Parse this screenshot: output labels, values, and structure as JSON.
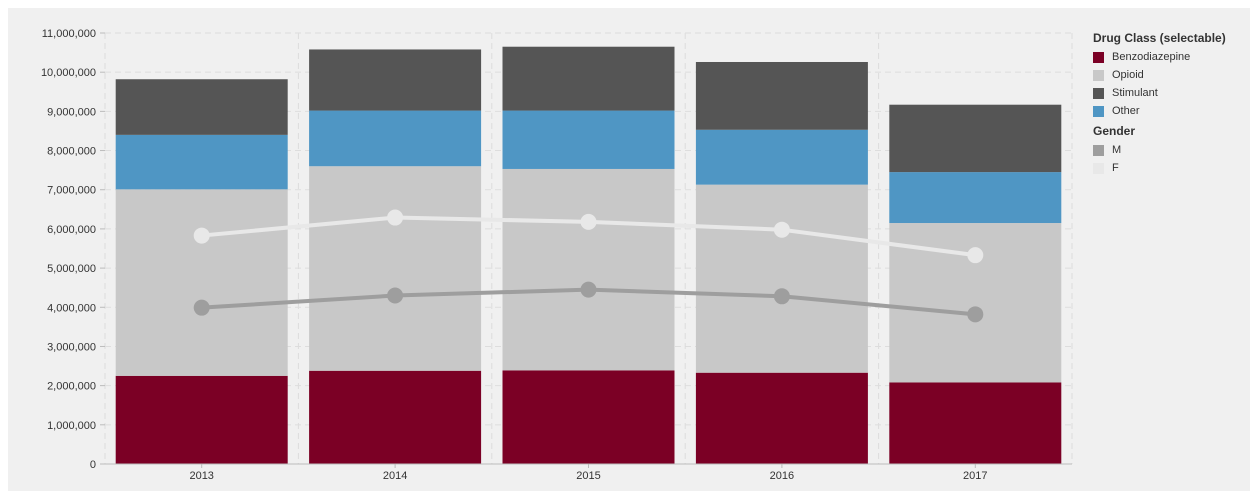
{
  "chart_data": {
    "type": "bar",
    "stacked": true,
    "categories": [
      "2013",
      "2014",
      "2015",
      "2016",
      "2017"
    ],
    "ylim": [
      0,
      11000000
    ],
    "yticks": [
      0,
      1000000,
      2000000,
      3000000,
      4000000,
      5000000,
      6000000,
      7000000,
      8000000,
      9000000,
      10000000,
      11000000
    ],
    "ytick_labels": [
      "0",
      "1,000,000",
      "2,000,000",
      "3,000,000",
      "4,000,000",
      "5,000,000",
      "6,000,000",
      "7,000,000",
      "8,000,000",
      "9,000,000",
      "10,000,000",
      "11,000,000"
    ],
    "grid": true,
    "legend_position": "right",
    "series": [
      {
        "name": "Benzodiazepine",
        "color": "#7b0025",
        "values": [
          2250000,
          2380000,
          2390000,
          2330000,
          2080000
        ]
      },
      {
        "name": "Opioid",
        "color": "#c8c8c8",
        "values": [
          4760000,
          5220000,
          5140000,
          4800000,
          4070000
        ]
      },
      {
        "name": "Other",
        "color": "#4f96c4",
        "values": [
          1390000,
          1420000,
          1490000,
          1400000,
          1300000
        ]
      },
      {
        "name": "Stimulant",
        "color": "#555555",
        "values": [
          1420000,
          1560000,
          1630000,
          1730000,
          1720000
        ]
      }
    ],
    "lines": [
      {
        "name": "F",
        "color": "#e8e8e8",
        "values": [
          5830000,
          6290000,
          6180000,
          5980000,
          5330000
        ]
      },
      {
        "name": "M",
        "color": "#9e9e9e",
        "values": [
          3990000,
          4300000,
          4450000,
          4280000,
          3820000
        ]
      }
    ]
  },
  "legend": {
    "drug_title": "Drug Class (selectable)",
    "drug_items": [
      {
        "label": "Benzodiazepine",
        "color": "#7b0025"
      },
      {
        "label": "Opioid",
        "color": "#c8c8c8"
      },
      {
        "label": "Stimulant",
        "color": "#555555"
      },
      {
        "label": "Other",
        "color": "#4f96c4"
      }
    ],
    "gender_title": "Gender",
    "gender_items": [
      {
        "label": "M",
        "color": "#9e9e9e"
      },
      {
        "label": "F",
        "color": "#e8e8e8"
      }
    ]
  },
  "colors": {
    "panel_bg": "#f0f0f0",
    "grid": "#dddddd",
    "axis_text": "#333333"
  }
}
